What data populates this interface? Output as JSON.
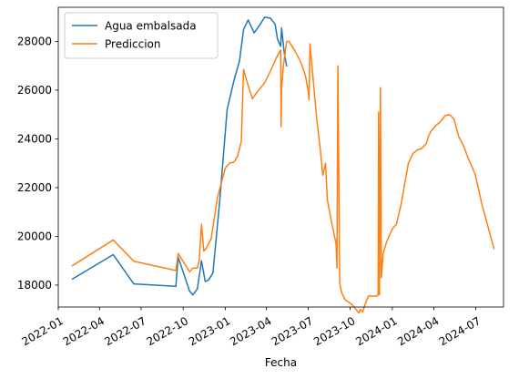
{
  "chart_data": {
    "type": "line",
    "xlabel": "Fecha",
    "ylabel": "",
    "title": "",
    "xlim": [
      "2022-01-01",
      "2024-08-31"
    ],
    "ylim": [
      17100,
      29400
    ],
    "grid": false,
    "legend_position": "top-left",
    "x_ticks": [
      "2022-01",
      "2022-04",
      "2022-07",
      "2022-10",
      "2023-01",
      "2023-04",
      "2023-07",
      "2023-10",
      "2024-01",
      "2024-04",
      "2024-07"
    ],
    "x_tick_labels": [
      "2022-01",
      "2022-04",
      "2022-07",
      "2022-10",
      "2023-01",
      "2023-04",
      "2023-07",
      "2023-10",
      "2024-01",
      "2024-04",
      "2024-07"
    ],
    "y_ticks": [
      18000,
      20000,
      22000,
      24000,
      26000,
      28000
    ],
    "y_tick_labels": [
      "18000",
      "20000",
      "22000",
      "24000",
      "26000",
      "28000"
    ],
    "series": [
      {
        "name": "Agua embalsada",
        "color": "#1f77b4",
        "x": [
          "2022-02-01",
          "2022-05-01",
          "2022-06-15",
          "2022-09-15",
          "2022-09-20",
          "2022-10-15",
          "2022-10-22",
          "2022-11-01",
          "2022-11-10",
          "2022-11-18",
          "2022-11-25",
          "2022-12-05",
          "2022-12-20",
          "2023-01-05",
          "2023-01-20",
          "2023-02-01",
          "2023-02-10",
          "2023-02-20",
          "2023-03-05",
          "2023-03-20",
          "2023-03-28",
          "2023-04-10",
          "2023-04-20",
          "2023-04-25",
          "2023-05-02",
          "2023-05-04",
          "2023-05-10",
          "2023-05-15"
        ],
        "y": [
          18250,
          19250,
          18050,
          17950,
          19150,
          17750,
          17600,
          17850,
          19000,
          18150,
          18200,
          18500,
          21500,
          25200,
          26400,
          27200,
          28500,
          28880,
          28350,
          28750,
          29000,
          28950,
          28700,
          28100,
          27800,
          28550,
          27500,
          27000
        ]
      },
      {
        "name": "Prediccion",
        "color": "#ff7f0e",
        "x": [
          "2022-02-01",
          "2022-05-01",
          "2022-06-15",
          "2022-09-15",
          "2022-09-20",
          "2022-10-15",
          "2022-10-22",
          "2022-11-01",
          "2022-11-05",
          "2022-11-10",
          "2022-11-15",
          "2022-11-20",
          "2022-12-01",
          "2022-12-15",
          "2023-01-01",
          "2023-01-10",
          "2023-01-20",
          "2023-01-28",
          "2023-02-05",
          "2023-02-10",
          "2023-02-15",
          "2023-03-01",
          "2023-03-15",
          "2023-03-28",
          "2023-04-10",
          "2023-04-22",
          "2023-04-26",
          "2023-05-02",
          "2023-05-03",
          "2023-05-04",
          "2023-05-08",
          "2023-05-15",
          "2023-05-20",
          "2023-06-01",
          "2023-06-15",
          "2023-06-25",
          "2023-07-01",
          "2023-07-03",
          "2023-07-05",
          "2023-07-20",
          "2023-07-28",
          "2023-08-02",
          "2023-08-08",
          "2023-08-12",
          "2023-08-20",
          "2023-08-31",
          "2023-09-01",
          "2023-09-02",
          "2023-09-04",
          "2023-09-08",
          "2023-09-12",
          "2023-09-20",
          "2023-10-05",
          "2023-10-20",
          "2023-10-23",
          "2023-10-28",
          "2023-11-04",
          "2023-11-10",
          "2023-11-20",
          "2023-11-28",
          "2023-12-01",
          "2023-12-02",
          "2023-12-04",
          "2023-12-06",
          "2023-12-08",
          "2023-12-12",
          "2023-12-20",
          "2024-01-01",
          "2024-01-10",
          "2024-01-20",
          "2024-02-05",
          "2024-02-15",
          "2024-02-25",
          "2024-03-05",
          "2024-03-15",
          "2024-03-20",
          "2024-03-25",
          "2024-04-05",
          "2024-04-15",
          "2024-04-25",
          "2024-05-05",
          "2024-05-15",
          "2024-05-25",
          "2024-06-05",
          "2024-06-15",
          "2024-06-30",
          "2024-07-15",
          "2024-08-10"
        ],
        "y": [
          18800,
          19850,
          18980,
          18600,
          19300,
          18550,
          18700,
          18700,
          19000,
          20500,
          19400,
          19500,
          19900,
          21600,
          22800,
          23000,
          23050,
          23300,
          23900,
          26850,
          26500,
          25650,
          26000,
          26300,
          26800,
          27300,
          27450,
          27650,
          24500,
          26100,
          27000,
          28000,
          28000,
          27650,
          27150,
          26600,
          26000,
          25600,
          27900,
          24800,
          23500,
          22500,
          23000,
          21500,
          20700,
          19700,
          19200,
          18700,
          27000,
          18100,
          17700,
          17400,
          17200,
          16850,
          17000,
          16900,
          17300,
          17550,
          17550,
          17550,
          17600,
          25100,
          17600,
          26100,
          18300,
          19300,
          19800,
          20300,
          20500,
          21300,
          23000,
          23400,
          23550,
          23600,
          23800,
          24100,
          24300,
          24550,
          24700,
          24950,
          25000,
          24800,
          24100,
          23700,
          23200,
          22550,
          21300,
          19500
        ]
      }
    ]
  }
}
